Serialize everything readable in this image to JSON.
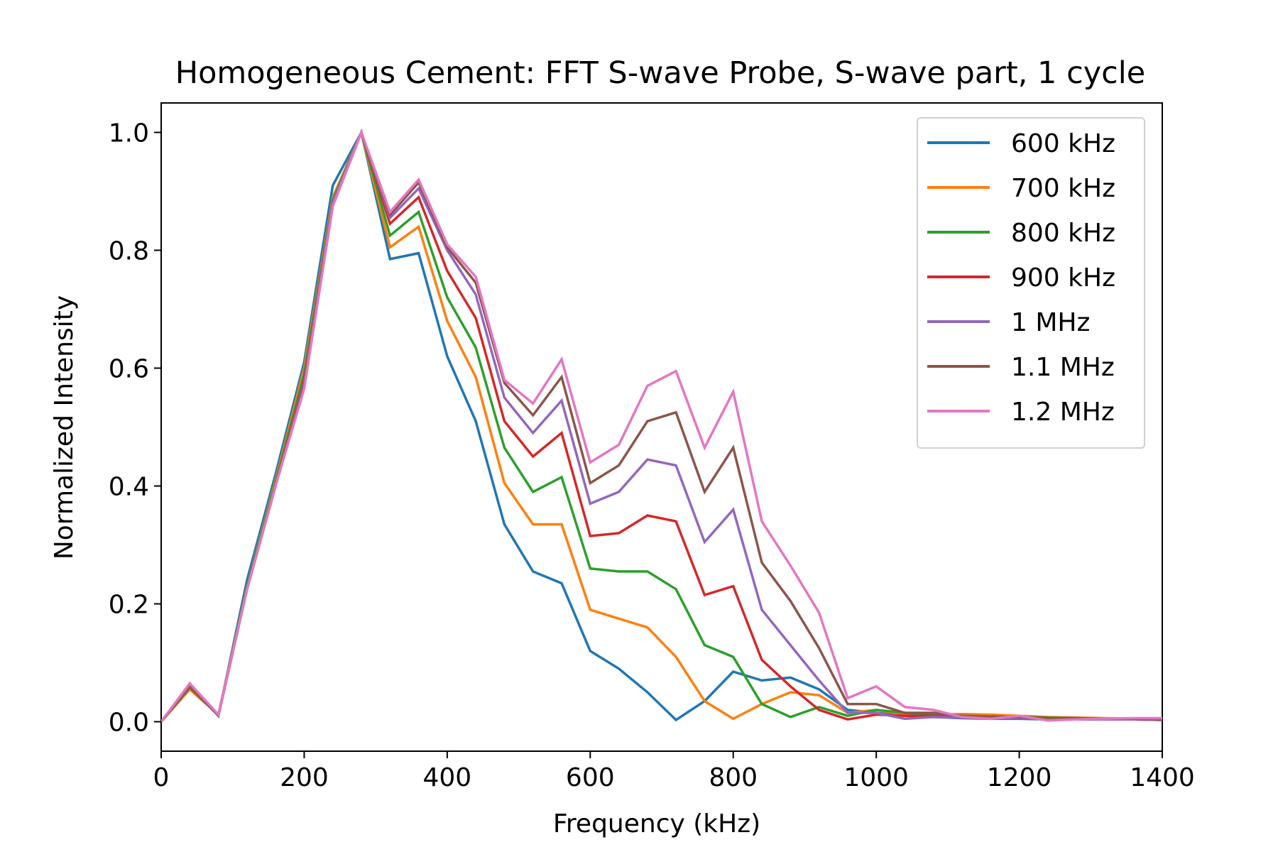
{
  "chart_data": {
    "type": "line",
    "title": "Homogeneous Cement: FFT S-wave Probe, S-wave part, 1 cycle",
    "xlabel": "Frequency (kHz)",
    "ylabel": "Normalized Intensity",
    "xlim": [
      0,
      1400
    ],
    "ylim": [
      -0.05,
      1.05
    ],
    "xticks": [
      0,
      200,
      400,
      600,
      800,
      1000,
      1200,
      1400
    ],
    "xtick_labels": [
      "0",
      "200",
      "400",
      "600",
      "800",
      "1000",
      "1200",
      "1400"
    ],
    "yticks": [
      0.0,
      0.2,
      0.4,
      0.6,
      0.8,
      1.0
    ],
    "ytick_labels": [
      "0.0",
      "0.2",
      "0.4",
      "0.6",
      "0.8",
      "1.0"
    ],
    "grid": false,
    "legend_position": "top-right",
    "x": [
      0,
      40,
      80,
      120,
      160,
      200,
      240,
      280,
      320,
      360,
      400,
      440,
      480,
      520,
      560,
      600,
      640,
      680,
      720,
      760,
      800,
      840,
      880,
      920,
      960,
      1000,
      1040,
      1080,
      1120,
      1160,
      1200,
      1240,
      1280,
      1320,
      1360,
      1400
    ],
    "series": [
      {
        "name": "600 kHz",
        "color": "#1f77b4",
        "values": [
          0.0,
          0.06,
          0.01,
          0.24,
          0.42,
          0.61,
          0.91,
          1.0,
          0.785,
          0.795,
          0.62,
          0.51,
          0.335,
          0.255,
          0.235,
          0.12,
          0.09,
          0.05,
          0.003,
          0.035,
          0.085,
          0.07,
          0.075,
          0.055,
          0.02,
          0.015,
          0.01,
          0.008,
          0.006,
          0.005,
          0.005,
          0.004,
          0.004,
          0.004,
          0.004,
          0.003
        ]
      },
      {
        "name": "700 kHz",
        "color": "#ff7f0e",
        "values": [
          0.0,
          0.055,
          0.012,
          0.23,
          0.41,
          0.6,
          0.89,
          1.0,
          0.805,
          0.84,
          0.68,
          0.585,
          0.405,
          0.335,
          0.335,
          0.19,
          0.175,
          0.16,
          0.11,
          0.035,
          0.005,
          0.03,
          0.05,
          0.045,
          0.015,
          0.02,
          0.012,
          0.012,
          0.013,
          0.012,
          0.01,
          0.008,
          0.007,
          0.006,
          0.005,
          0.004
        ]
      },
      {
        "name": "800 kHz",
        "color": "#2ca02c",
        "values": [
          0.0,
          0.058,
          0.011,
          0.23,
          0.405,
          0.59,
          0.885,
          1.0,
          0.825,
          0.865,
          0.72,
          0.635,
          0.465,
          0.39,
          0.415,
          0.26,
          0.255,
          0.255,
          0.225,
          0.13,
          0.11,
          0.03,
          0.008,
          0.025,
          0.01,
          0.02,
          0.015,
          0.012,
          0.01,
          0.009,
          0.008,
          0.007,
          0.006,
          0.005,
          0.004,
          0.004
        ]
      },
      {
        "name": "900 kHz",
        "color": "#d62728",
        "values": [
          0.0,
          0.06,
          0.011,
          0.225,
          0.4,
          0.58,
          0.88,
          1.0,
          0.845,
          0.89,
          0.765,
          0.685,
          0.51,
          0.45,
          0.49,
          0.315,
          0.32,
          0.35,
          0.34,
          0.215,
          0.23,
          0.105,
          0.06,
          0.02,
          0.004,
          0.012,
          0.01,
          0.01,
          0.008,
          0.007,
          0.006,
          0.005,
          0.005,
          0.004,
          0.004,
          0.003
        ]
      },
      {
        "name": "1 MHz",
        "color": "#9467bd",
        "values": [
          0.0,
          0.062,
          0.011,
          0.225,
          0.4,
          0.575,
          0.88,
          1.0,
          0.855,
          0.905,
          0.8,
          0.725,
          0.55,
          0.49,
          0.545,
          0.37,
          0.39,
          0.445,
          0.435,
          0.305,
          0.36,
          0.19,
          0.13,
          0.07,
          0.015,
          0.015,
          0.005,
          0.008,
          0.007,
          0.006,
          0.006,
          0.005,
          0.005,
          0.004,
          0.004,
          0.003
        ]
      },
      {
        "name": "1.1 MHz",
        "color": "#8c564b",
        "values": [
          0.0,
          0.063,
          0.011,
          0.225,
          0.4,
          0.57,
          0.875,
          1.0,
          0.86,
          0.915,
          0.805,
          0.745,
          0.575,
          0.52,
          0.585,
          0.405,
          0.435,
          0.51,
          0.525,
          0.39,
          0.465,
          0.27,
          0.205,
          0.125,
          0.03,
          0.03,
          0.015,
          0.015,
          0.01,
          0.008,
          0.008,
          0.006,
          0.006,
          0.005,
          0.005,
          0.004
        ]
      },
      {
        "name": "1.2 MHz",
        "color": "#e377c2",
        "values": [
          0.0,
          0.065,
          0.012,
          0.225,
          0.4,
          0.565,
          0.875,
          1.0,
          0.865,
          0.92,
          0.81,
          0.755,
          0.58,
          0.54,
          0.615,
          0.44,
          0.47,
          0.57,
          0.595,
          0.465,
          0.56,
          0.34,
          0.265,
          0.185,
          0.04,
          0.06,
          0.025,
          0.02,
          0.008,
          0.005,
          0.01,
          0.002,
          0.004,
          0.005,
          0.006,
          0.006
        ]
      }
    ]
  }
}
